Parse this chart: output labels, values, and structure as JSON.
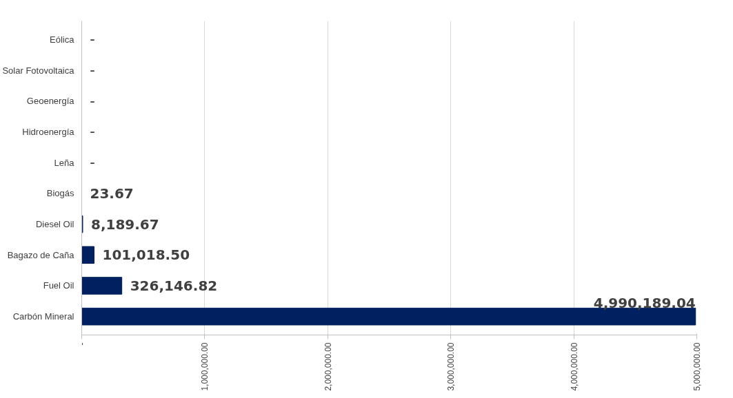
{
  "chart_data": {
    "type": "bar",
    "orientation": "horizontal",
    "categories": [
      "Eólica",
      "Solar Fotovoltaica",
      "Geoenergía",
      "Hidroenergía",
      "Leña",
      "Biogás",
      "Diesel Oil",
      "Bagazo de Caña",
      "Fuel Oil",
      "Carbón Mineral"
    ],
    "values": [
      0,
      0,
      0,
      0,
      0,
      23.67,
      8189.67,
      101018.5,
      326146.82,
      4990189.04
    ],
    "value_labels": [
      "–",
      "–",
      "–",
      "–",
      "–",
      "23.67",
      "8,189.67",
      "101,018.50",
      "326,146.82",
      "4,990,189.04"
    ],
    "color": "#002060",
    "xlim": [
      0,
      5000000
    ],
    "xticks": [
      {
        "value": 0,
        "label": "-"
      },
      {
        "value": 1000000,
        "label": "1,000,000.00"
      },
      {
        "value": 2000000,
        "label": "2,000,000.00"
      },
      {
        "value": 3000000,
        "label": "3,000,000.00"
      },
      {
        "value": 4000000,
        "label": "4,000,000.00"
      },
      {
        "value": 5000000,
        "label": "5,000,000.00"
      }
    ],
    "grid": "x"
  }
}
